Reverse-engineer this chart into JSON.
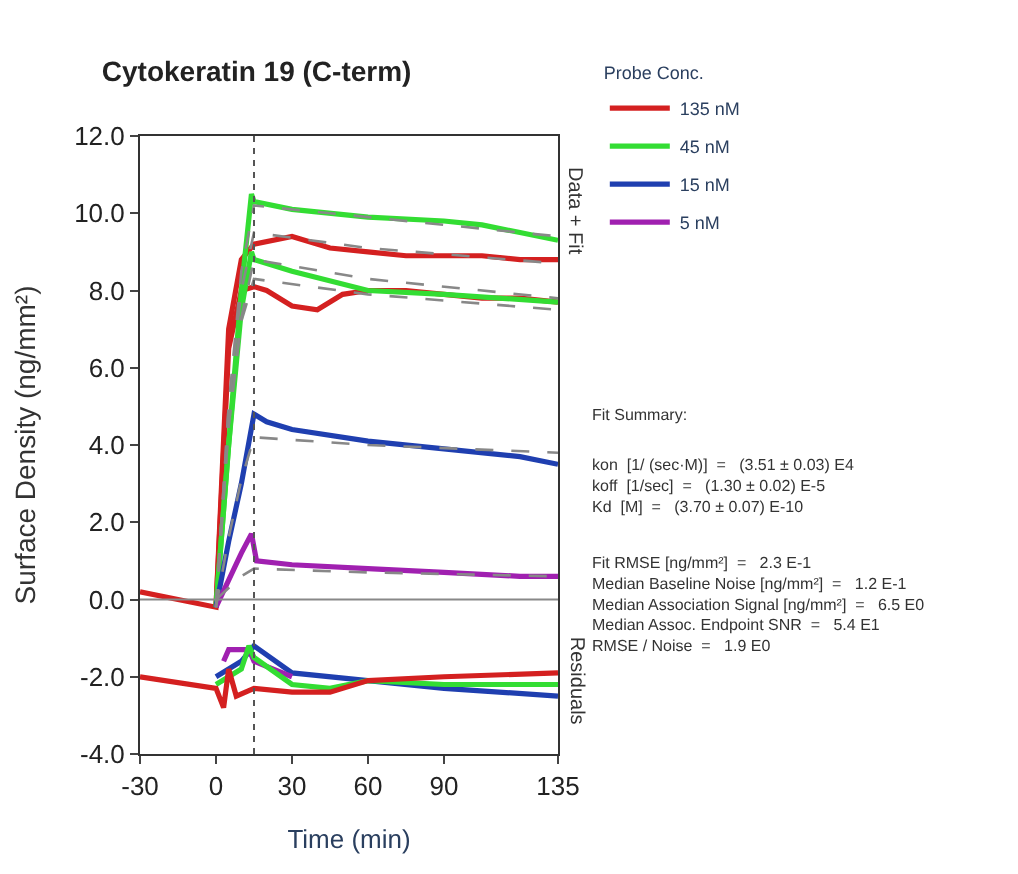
{
  "chart_data": {
    "type": "line",
    "title": "Cytokeratin 19 (C-term)",
    "xlabel": "Time (min)",
    "ylabel": "Surface Density (ng/mm²)",
    "legend_title": "Probe Conc.",
    "xlim": [
      -30,
      135
    ],
    "xticks": [
      -30,
      0,
      30,
      60,
      90,
      135
    ],
    "ylim": [
      -4,
      12
    ],
    "yticks": [
      {
        "value": -4,
        "label": "-4.0"
      },
      {
        "value": -2,
        "label": "-2.0"
      },
      {
        "value": 0,
        "label": "0.0"
      },
      {
        "value": 2,
        "label": "2.0"
      },
      {
        "value": 4,
        "label": "4.0"
      },
      {
        "value": 6,
        "label": "6.0"
      },
      {
        "value": 8,
        "label": "8.0"
      },
      {
        "value": 10,
        "label": "10.0"
      },
      {
        "value": 12,
        "label": "12.0"
      }
    ],
    "legend": "top right",
    "marker": "none",
    "ref_lines": [
      {
        "axis": "x",
        "value": 15,
        "label": null,
        "color": "#555555",
        "line_style": "dotted"
      },
      {
        "axis": "y",
        "value": 0,
        "label": null,
        "color": "#888888",
        "line_style": "solid"
      }
    ],
    "series": [
      {
        "name": "135 nM",
        "color": "#d42020",
        "x": [
          -30,
          -15,
          0,
          5,
          10,
          15,
          30,
          45,
          60,
          75,
          90,
          105,
          120,
          135
        ],
        "values": [
          0.2,
          0.0,
          -0.2,
          7.0,
          8.8,
          9.2,
          9.4,
          9.1,
          9.0,
          8.9,
          8.9,
          8.9,
          8.8,
          8.8
        ]
      },
      {
        "color": "#d42020",
        "x": [
          0,
          5,
          10,
          15,
          20,
          30,
          40,
          50,
          60,
          75,
          90,
          105,
          120,
          135
        ],
        "values": [
          -0.2,
          6.5,
          8.0,
          8.1,
          8.0,
          7.6,
          7.5,
          7.9,
          8.0,
          8.0,
          7.9,
          7.8,
          7.8,
          7.7
        ]
      },
      {
        "name": "45 nM",
        "color": "#33dd33",
        "x": [
          0,
          5,
          10,
          14,
          15,
          30,
          60,
          90,
          105,
          120,
          135
        ],
        "values": [
          -0.2,
          4.0,
          8.0,
          10.5,
          10.3,
          10.1,
          9.9,
          9.8,
          9.7,
          9.5,
          9.3
        ]
      },
      {
        "color": "#33dd33",
        "x": [
          0,
          5,
          10,
          14,
          15,
          30,
          60,
          90,
          135
        ],
        "values": [
          -0.2,
          4.0,
          7.5,
          9.0,
          8.8,
          8.5,
          8.0,
          7.9,
          7.7
        ]
      },
      {
        "name": "15 nM",
        "color": "#1f3fb0",
        "x": [
          0,
          5,
          10,
          15,
          20,
          30,
          60,
          90,
          120,
          135
        ],
        "values": [
          -0.2,
          1.5,
          3.0,
          4.8,
          4.6,
          4.4,
          4.1,
          3.9,
          3.7,
          3.5
        ]
      },
      {
        "name": "5 nM",
        "color": "#a020b0",
        "x": [
          0,
          5,
          10,
          14,
          16,
          30,
          60,
          90,
          120,
          135
        ],
        "values": [
          -0.2,
          0.5,
          1.2,
          1.7,
          1.0,
          0.9,
          0.8,
          0.7,
          0.6,
          0.6
        ]
      },
      {
        "color": "#888888",
        "line_style": "dashed",
        "x": [
          0,
          5,
          10,
          15,
          60,
          135
        ],
        "values": [
          -0.2,
          5.0,
          8.0,
          9.5,
          9.1,
          8.7
        ]
      },
      {
        "color": "#888888",
        "line_style": "dashed",
        "x": [
          0,
          5,
          10,
          15,
          60,
          135
        ],
        "values": [
          -0.2,
          4.5,
          7.2,
          8.3,
          7.9,
          7.5
        ]
      },
      {
        "color": "#888888",
        "line_style": "dashed",
        "x": [
          0,
          5,
          10,
          15,
          60,
          135
        ],
        "values": [
          -0.2,
          5.0,
          8.5,
          10.2,
          9.9,
          9.4
        ]
      },
      {
        "color": "#888888",
        "line_style": "dashed",
        "x": [
          0,
          5,
          10,
          15,
          60,
          135
        ],
        "values": [
          -0.2,
          4.5,
          7.3,
          8.8,
          8.3,
          7.8
        ]
      },
      {
        "color": "#888888",
        "line_style": "dashed",
        "x": [
          0,
          5,
          10,
          15,
          60,
          135
        ],
        "values": [
          -0.2,
          1.6,
          3.1,
          4.2,
          4.0,
          3.8
        ]
      },
      {
        "color": "#888888",
        "line_style": "dashed",
        "x": [
          0,
          5,
          10,
          15,
          60,
          135
        ],
        "values": [
          0.0,
          0.3,
          0.6,
          0.8,
          0.7,
          0.6
        ]
      },
      {
        "color": "#1f3fb0",
        "x": [
          0,
          10,
          15,
          30,
          60,
          90,
          135
        ],
        "values": [
          -2.0,
          -1.6,
          -1.2,
          -1.9,
          -2.1,
          -2.3,
          -2.5
        ]
      },
      {
        "color": "#a020b0",
        "x": [
          3,
          5,
          13,
          15,
          30
        ],
        "values": [
          -1.6,
          -1.3,
          -1.3,
          -1.6,
          -2.0
        ]
      },
      {
        "color": "#33dd33",
        "x": [
          0,
          10,
          13,
          15,
          30,
          45,
          60,
          90,
          135
        ],
        "values": [
          -2.2,
          -1.8,
          -1.2,
          -1.5,
          -2.2,
          -2.3,
          -2.1,
          -2.2,
          -2.2
        ]
      },
      {
        "color": "#d42020",
        "x": [
          -30,
          0,
          3,
          5,
          8,
          15,
          30,
          45,
          60,
          90,
          135
        ],
        "values": [
          -2.0,
          -2.3,
          -2.8,
          -1.8,
          -2.5,
          -2.3,
          -2.4,
          -2.4,
          -2.1,
          -2.0,
          -1.9
        ]
      }
    ],
    "annotations": [
      "Data + Fit",
      "Residuals",
      "Fit Summary:",
      "kon  [1/ (sec·M)]  =   (3.51 ± 0.03) E4\nkoff  [1/sec]  =   (1.30 ± 0.02) E-5\nKd  [M]  =   (3.70 ± 0.07) E-10",
      "Fit RMSE [ng/mm²]  =   2.3 E-1\nMedian Baseline Noise [ng/mm²]  =   1.2 E-1\nMedian Association Signal [ng/mm²]  =   6.5 E0\nMedian Assoc. Endpoint SNR  =   5.4 E1\nRMSE / Noise  =   1.9 E0"
    ]
  }
}
